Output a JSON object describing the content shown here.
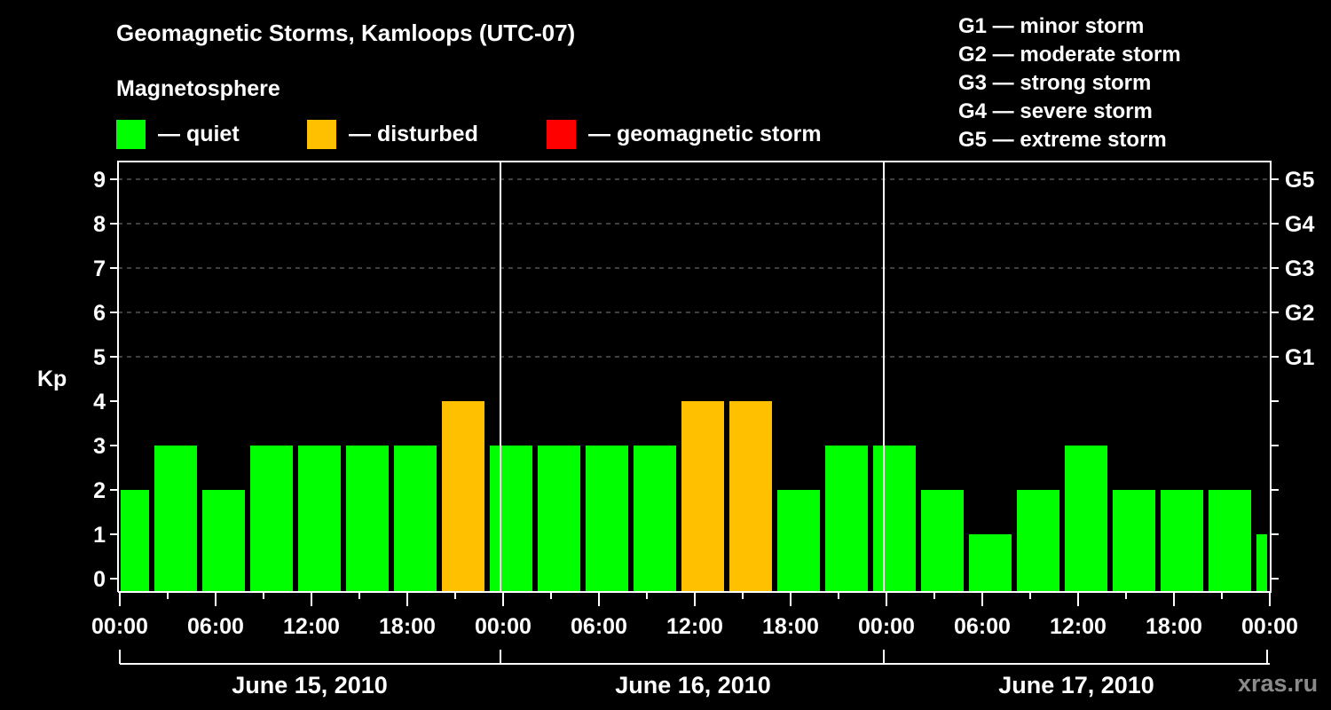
{
  "header": {
    "title": "Geomagnetic Storms, Kamloops (UTC-07)",
    "subtitle": "Magnetosphere"
  },
  "legend": {
    "items": [
      {
        "label": "— quiet",
        "color": "#00ff00"
      },
      {
        "label": "— disturbed",
        "color": "#ffc000"
      },
      {
        "label": "— geomagnetic storm",
        "color": "#ff0000"
      }
    ]
  },
  "storm_scale": {
    "items": [
      "G1 — minor storm",
      "G2 — moderate storm",
      "G3 — strong storm",
      "G4 — severe storm",
      "G5 — extreme storm"
    ]
  },
  "axes": {
    "ylabel": "Kp",
    "y_ticks": [
      "0",
      "1",
      "2",
      "3",
      "4",
      "5",
      "6",
      "7",
      "8",
      "9"
    ],
    "right_ticks": [
      {
        "value": 5,
        "label": "G1"
      },
      {
        "value": 6,
        "label": "G2"
      },
      {
        "value": 7,
        "label": "G3"
      },
      {
        "value": 8,
        "label": "G4"
      },
      {
        "value": 9,
        "label": "G5"
      }
    ],
    "x_ticks": [
      "00:00",
      "06:00",
      "12:00",
      "18:00",
      "00:00",
      "06:00",
      "12:00",
      "18:00",
      "00:00",
      "06:00",
      "12:00",
      "18:00",
      "00:00"
    ],
    "days": [
      "June 15, 2010",
      "June 16, 2010",
      "June 17, 2010"
    ]
  },
  "watermark": "xras.ru",
  "colors": {
    "quiet": "#00ff00",
    "disturbed": "#ffc000",
    "storm": "#ff0000",
    "grid": "#808080",
    "axis": "#ffffff",
    "background": "#000000"
  },
  "chart_data": {
    "type": "bar",
    "title": "Geomagnetic Storms, Kamloops (UTC-07)",
    "subtitle": "Magnetosphere",
    "xlabel": "",
    "ylabel": "Kp",
    "ylim": [
      0,
      9
    ],
    "grid": "dashed horizontal at Kp 5-9",
    "legend_position": "top",
    "categories": [
      "Jun15 ~00:00 (partial)",
      "Jun15 03:00",
      "Jun15 06:00",
      "Jun15 09:00",
      "Jun15 12:00",
      "Jun15 15:00",
      "Jun15 18:00",
      "Jun15 21:00",
      "Jun16 00:00",
      "Jun16 03:00",
      "Jun16 06:00",
      "Jun16 09:00",
      "Jun16 12:00",
      "Jun16 15:00",
      "Jun16 18:00",
      "Jun16 21:00",
      "Jun17 00:00",
      "Jun17 03:00",
      "Jun17 06:00",
      "Jun17 09:00",
      "Jun17 12:00",
      "Jun17 15:00",
      "Jun17 18:00",
      "Jun17 21:00",
      "Jun18 ~00:00 (partial)"
    ],
    "values": [
      2,
      3,
      2,
      3,
      3,
      3,
      3,
      4,
      3,
      3,
      3,
      3,
      4,
      4,
      2,
      3,
      3,
      2,
      1,
      2,
      3,
      2,
      2,
      2,
      1
    ],
    "status": [
      "quiet",
      "quiet",
      "quiet",
      "quiet",
      "quiet",
      "quiet",
      "quiet",
      "disturbed",
      "quiet",
      "quiet",
      "quiet",
      "quiet",
      "disturbed",
      "disturbed",
      "quiet",
      "quiet",
      "quiet",
      "quiet",
      "quiet",
      "quiet",
      "quiet",
      "quiet",
      "quiet",
      "quiet",
      "quiet"
    ],
    "x_tick_labels": [
      "00:00",
      "06:00",
      "12:00",
      "18:00",
      "00:00",
      "06:00",
      "12:00",
      "18:00",
      "00:00",
      "06:00",
      "12:00",
      "18:00",
      "00:00"
    ],
    "day_labels": [
      "June 15, 2010",
      "June 16, 2010",
      "June 17, 2010"
    ],
    "right_axis_labels": {
      "5": "G1",
      "6": "G2",
      "7": "G3",
      "8": "G4",
      "9": "G5"
    }
  }
}
